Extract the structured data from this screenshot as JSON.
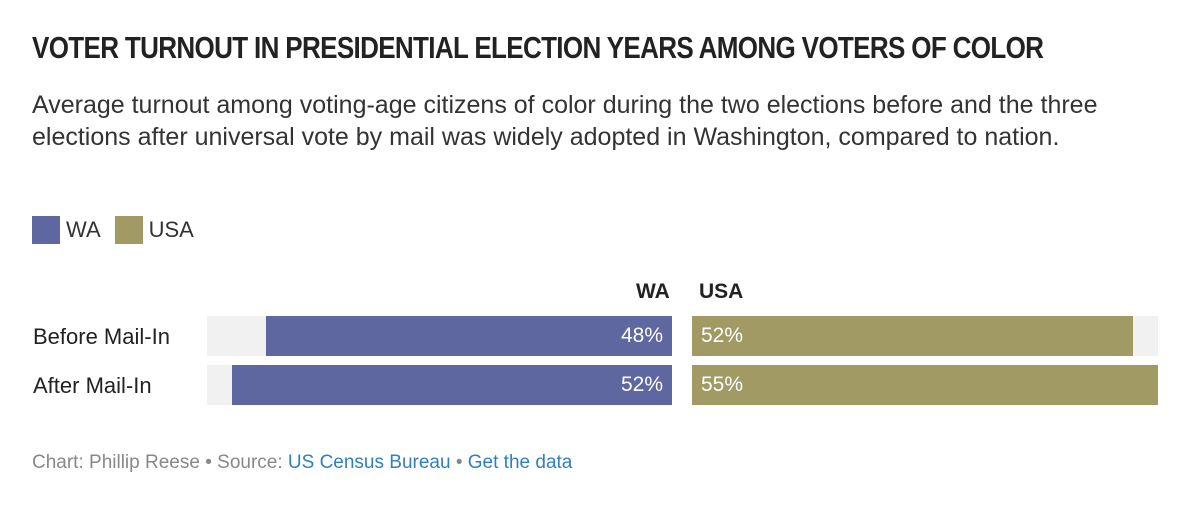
{
  "chart_data": {
    "type": "bar",
    "title": "VOTER TURNOUT IN PRESIDENTIAL ELECTION YEARS AMONG VOTERS OF COLOR",
    "subtitle": "Average turnout among voting-age citizens of color during the two elections before and the three elections after universal vote by mail was widely adopted in Washington, compared to nation.",
    "categories": [
      "Before Mail-In",
      "After Mail-In"
    ],
    "series": [
      {
        "name": "WA",
        "values": [
          48,
          52
        ],
        "labels": [
          "48%",
          "52%"
        ],
        "color": "#5f67a0"
      },
      {
        "name": "USA",
        "values": [
          52,
          55
        ],
        "labels": [
          "52%",
          "55%"
        ],
        "color": "#a19a64"
      }
    ],
    "xlim": [
      0,
      55
    ],
    "legend": "top-left",
    "grid": false
  },
  "footer": {
    "chart_credit": "Chart: Phillip Reese",
    "sep1": "•",
    "source_label": "Source:",
    "source_link": "US Census Bureau",
    "sep2": "•",
    "data_link": "Get the data"
  }
}
